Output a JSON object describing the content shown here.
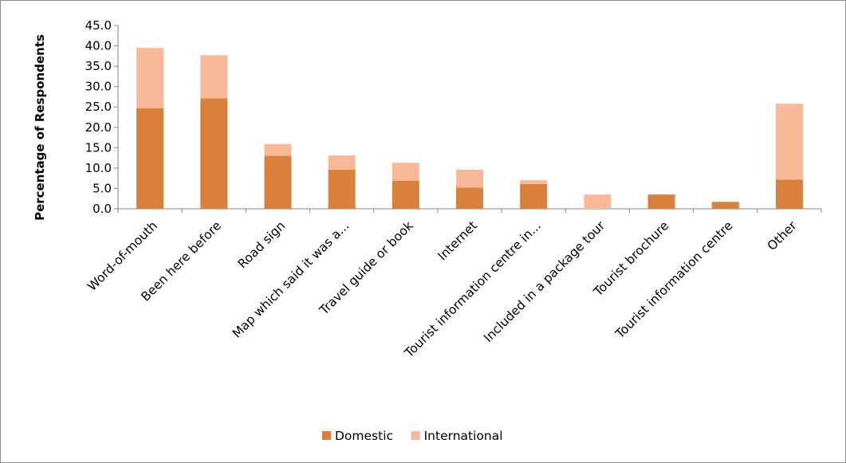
{
  "chart_data": {
    "type": "bar",
    "stacked": true,
    "categories": [
      "Word-of-mouth",
      "Been here before",
      "Road sign",
      "Map which said it was a...",
      "Travel guide or book",
      "Internet",
      "Tourist information centre in...",
      "Included in a package tour",
      "Tourist brochure",
      "Tourist information centre",
      "Other"
    ],
    "series": [
      {
        "name": "Domestic",
        "color": "#d9803a",
        "values": [
          24.7,
          27.1,
          13.0,
          9.6,
          6.9,
          5.2,
          6.1,
          0.0,
          3.5,
          1.7,
          7.2
        ]
      },
      {
        "name": "International",
        "color": "#f8b998",
        "values": [
          14.8,
          10.6,
          2.9,
          3.5,
          4.4,
          4.4,
          0.9,
          3.5,
          0.0,
          0.0,
          18.6
        ]
      }
    ],
    "title": "",
    "xlabel": "",
    "ylabel": "Percentage of Respondents",
    "ylim": [
      0,
      45
    ],
    "yticks": [
      "0.0",
      "5.0",
      "10.0",
      "15.0",
      "20.0",
      "25.0",
      "30.0",
      "35.0",
      "40.0",
      "45.0"
    ],
    "grid": false,
    "legend_position": "bottom"
  }
}
